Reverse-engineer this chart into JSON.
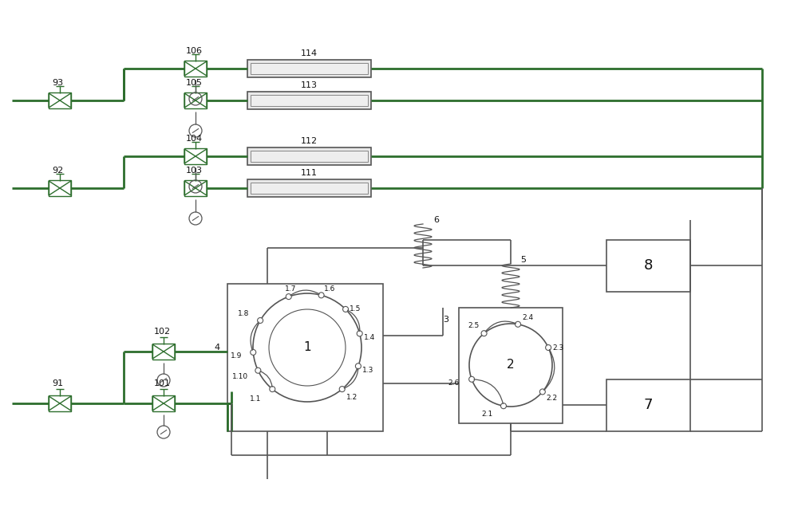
{
  "bg_color": "#ffffff",
  "lc": "#555555",
  "gc": "#2d6e2d",
  "figsize": [
    10.0,
    6.36
  ],
  "dpi": 100
}
